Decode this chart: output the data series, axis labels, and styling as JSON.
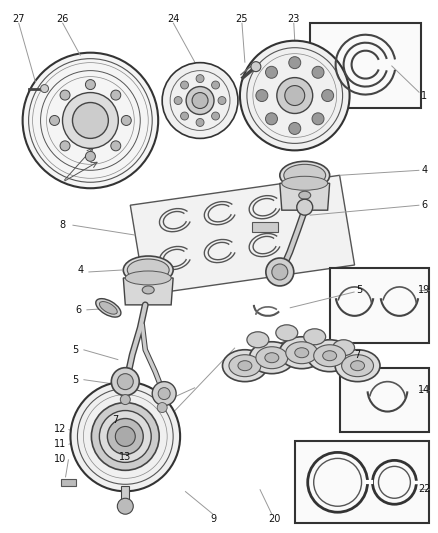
{
  "bg_color": "#ffffff",
  "fig_width": 4.38,
  "fig_height": 5.33,
  "dpi": 100,
  "line_color": "#555555",
  "label_fontsize": 7.0,
  "thin_line": "#999999",
  "part_edge": "#333333",
  "part_fill": "#e8e8e8"
}
